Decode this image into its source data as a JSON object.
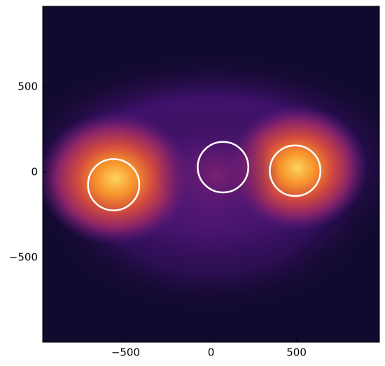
{
  "chart_data": {
    "type": "scatter",
    "x": [
      -570,
      70,
      492
    ],
    "series": [
      {
        "values": [
          -74,
          29,
          8
        ],
        "sizes": [
          150,
          148,
          148
        ],
        "color": "#ffffff"
      }
    ],
    "xlim": [
      -985,
      985
    ],
    "ylim": [
      -995,
      970
    ],
    "xticks": [
      {
        "value": -500,
        "label": "−500"
      },
      0,
      500
    ],
    "yticks": [
      {
        "value": -500,
        "label": "−500"
      },
      0,
      500
    ]
  }
}
